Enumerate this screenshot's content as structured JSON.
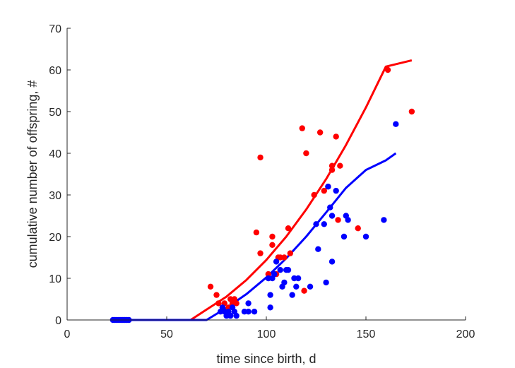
{
  "chart_data": {
    "type": "scatter",
    "title": "",
    "xlabel": "time since birth, d",
    "ylabel": "cumulative number of offspring, #",
    "xlim": [
      0,
      200
    ],
    "ylim": [
      0,
      70
    ],
    "xticks": [
      "0",
      "50",
      "100",
      "150",
      "200"
    ],
    "yticks": [
      "0",
      "10",
      "20",
      "30",
      "40",
      "50",
      "60",
      "70"
    ],
    "grid": false,
    "legend": "none",
    "series": [
      {
        "color": "#ff0000",
        "kind": "points",
        "points": [
          [
            72,
            8
          ],
          [
            75,
            6
          ],
          [
            76,
            4
          ],
          [
            78,
            3
          ],
          [
            79,
            4
          ],
          [
            81,
            3
          ],
          [
            82,
            5
          ],
          [
            83,
            4
          ],
          [
            84,
            5
          ],
          [
            85,
            4
          ],
          [
            95,
            21
          ],
          [
            97,
            16
          ],
          [
            97,
            39
          ],
          [
            101,
            11
          ],
          [
            103,
            20
          ],
          [
            103,
            18
          ],
          [
            105,
            11
          ],
          [
            106,
            15
          ],
          [
            107,
            15
          ],
          [
            109,
            15
          ],
          [
            111,
            22
          ],
          [
            112,
            16
          ],
          [
            118,
            46
          ],
          [
            119,
            7
          ],
          [
            120,
            40
          ],
          [
            124,
            30
          ],
          [
            127,
            45
          ],
          [
            129,
            31
          ],
          [
            131,
            32
          ],
          [
            133,
            37
          ],
          [
            133,
            36
          ],
          [
            135,
            44
          ],
          [
            136,
            24
          ],
          [
            137,
            37
          ],
          [
            146,
            22
          ],
          [
            161,
            60
          ],
          [
            173,
            50
          ]
        ]
      },
      {
        "color": "#0000ff",
        "kind": "points",
        "points": [
          [
            23,
            0
          ],
          [
            24,
            0
          ],
          [
            25,
            0
          ],
          [
            26,
            0
          ],
          [
            27,
            0
          ],
          [
            28,
            0
          ],
          [
            29,
            0
          ],
          [
            30,
            0
          ],
          [
            31,
            0
          ],
          [
            77,
            2
          ],
          [
            78,
            3
          ],
          [
            79,
            2
          ],
          [
            80,
            1
          ],
          [
            81,
            2
          ],
          [
            82,
            1
          ],
          [
            83,
            3
          ],
          [
            84,
            2
          ],
          [
            85,
            1
          ],
          [
            89,
            2
          ],
          [
            91,
            2
          ],
          [
            91,
            4
          ],
          [
            94,
            2
          ],
          [
            101,
            10
          ],
          [
            102,
            6
          ],
          [
            102,
            3
          ],
          [
            103,
            10
          ],
          [
            104,
            11
          ],
          [
            105,
            14
          ],
          [
            107,
            12
          ],
          [
            108,
            8
          ],
          [
            109,
            9
          ],
          [
            110,
            12
          ],
          [
            111,
            12
          ],
          [
            113,
            6
          ],
          [
            114,
            10
          ],
          [
            115,
            8
          ],
          [
            116,
            10
          ],
          [
            122,
            8
          ],
          [
            125,
            23
          ],
          [
            126,
            17
          ],
          [
            129,
            23
          ],
          [
            130,
            9
          ],
          [
            131,
            32
          ],
          [
            132,
            27
          ],
          [
            133,
            25
          ],
          [
            133,
            14
          ],
          [
            135,
            31
          ],
          [
            139,
            20
          ],
          [
            140,
            25
          ],
          [
            141,
            24
          ],
          [
            150,
            20
          ],
          [
            159,
            24
          ],
          [
            165,
            47
          ]
        ]
      },
      {
        "color": "#ff0000",
        "kind": "line",
        "points": [
          [
            24,
            0
          ],
          [
            62,
            0
          ],
          [
            70,
            2.5
          ],
          [
            80,
            5.6
          ],
          [
            90,
            9.6
          ],
          [
            100,
            14.4
          ],
          [
            110,
            20.0
          ],
          [
            120,
            26.5
          ],
          [
            130,
            33.8
          ],
          [
            140,
            42.0
          ],
          [
            150,
            51.0
          ],
          [
            160,
            60.8
          ],
          [
            173,
            62.3
          ]
        ]
      },
      {
        "color": "#0000ff",
        "kind": "line",
        "points": [
          [
            24,
            0
          ],
          [
            70,
            0
          ],
          [
            80,
            2.9
          ],
          [
            90,
            6.2
          ],
          [
            100,
            10.2
          ],
          [
            110,
            14.8
          ],
          [
            120,
            20.0
          ],
          [
            130,
            25.8
          ],
          [
            140,
            31.7
          ],
          [
            150,
            36.0
          ],
          [
            160,
            38.3
          ],
          [
            165,
            40.0
          ]
        ]
      }
    ]
  }
}
